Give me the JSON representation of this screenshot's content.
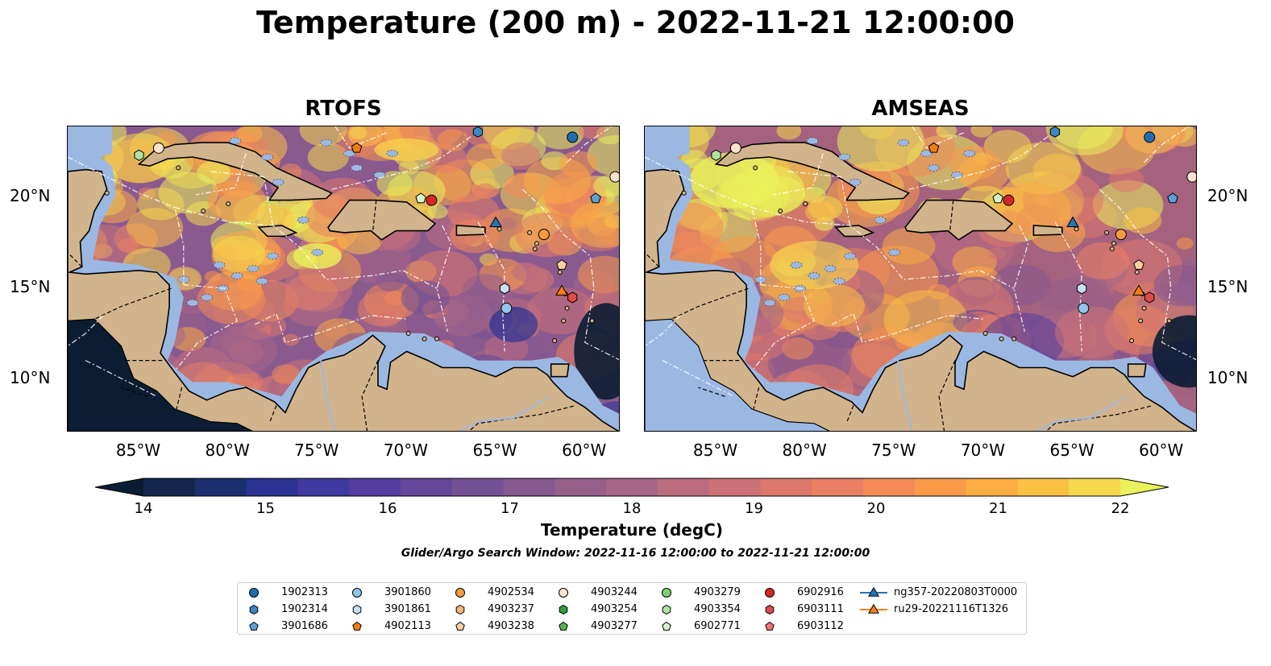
{
  "title": "Temperature (200 m) - 2022-11-21 12:00:00",
  "panels": [
    {
      "title": "RTOFS"
    },
    {
      "title": "AMSEAS"
    }
  ],
  "lat_ticks": [
    "20°N",
    "15°N",
    "10°N"
  ],
  "lon_ticks": [
    "85°W",
    "80°W",
    "75°W",
    "70°W",
    "65°W",
    "60°W"
  ],
  "map_extent": {
    "lon": [
      -89,
      -58
    ],
    "lat": [
      7,
      24
    ]
  },
  "colorbar": {
    "label": "Temperature (degC)",
    "ticks": [
      "14",
      "15",
      "16",
      "17",
      "18",
      "19",
      "20",
      "21",
      "22"
    ],
    "range": [
      14,
      22
    ],
    "step": 0.5,
    "extend": "both",
    "colors": [
      "#0b1d32",
      "#13274d",
      "#1b2f6e",
      "#2b3393",
      "#3f39a0",
      "#533e9f",
      "#654799",
      "#755094",
      "#85588f",
      "#965f8b",
      "#a86686",
      "#bb6c7f",
      "#cc7276",
      "#dd786c",
      "#ea8063",
      "#f48b56",
      "#f99b48",
      "#fbac43",
      "#fbc145",
      "#f6d84c",
      "#eaf15a"
    ]
  },
  "search_window": "Glider/Argo Search Window: 2022-11-16 12:00:00 to 2022-11-21 12:00:00",
  "colors": {
    "land": "#d2b48c",
    "shallow": "#9bb8e3"
  },
  "legend": {
    "columns": [
      [
        {
          "label": "1902313",
          "marker": "circle",
          "color": "#1f6fb0"
        },
        {
          "label": "1902314",
          "marker": "hexagon",
          "color": "#3b86c4"
        },
        {
          "label": "3901686",
          "marker": "pentagon",
          "color": "#5aa1d6"
        }
      ],
      [
        {
          "label": "3901860",
          "marker": "circle",
          "color": "#94c4e8"
        },
        {
          "label": "3901861",
          "marker": "hexagon",
          "color": "#c7e0f4"
        },
        {
          "label": "4902113",
          "marker": "pentagon",
          "color": "#f07d14"
        }
      ],
      [
        {
          "label": "4902534",
          "marker": "circle",
          "color": "#f59b3c"
        },
        {
          "label": "4903237",
          "marker": "hexagon",
          "color": "#f9b875"
        },
        {
          "label": "4903238",
          "marker": "pentagon",
          "color": "#fbcfa0"
        }
      ],
      [
        {
          "label": "4903244",
          "marker": "circle",
          "color": "#fde3cb"
        },
        {
          "label": "4903254",
          "marker": "hexagon",
          "color": "#2e9e3a"
        },
        {
          "label": "4903277",
          "marker": "pentagon",
          "color": "#53b64f"
        }
      ],
      [
        {
          "label": "4903279",
          "marker": "circle",
          "color": "#7fcf72"
        },
        {
          "label": "4903354",
          "marker": "hexagon",
          "color": "#aee3a0"
        },
        {
          "label": "6902771",
          "marker": "pentagon",
          "color": "#d8f3cd"
        }
      ],
      [
        {
          "label": "6902916",
          "marker": "circle",
          "color": "#d62728"
        },
        {
          "label": "6903111",
          "marker": "hexagon",
          "color": "#e24a4a"
        },
        {
          "label": "6903112",
          "marker": "pentagon",
          "color": "#ee7474"
        }
      ],
      [
        {
          "label": "ng357-20220803T0000",
          "marker": "triangle-line",
          "color": "#1f77b4"
        },
        {
          "label": "ru29-20221116T1326",
          "marker": "triangle-line",
          "color": "#ff7f0e"
        }
      ]
    ]
  },
  "markers": [
    {
      "lon": -85.0,
      "lat": 22.4,
      "marker": "hexagon",
      "color": "#aee3a0"
    },
    {
      "lon": -83.9,
      "lat": 22.8,
      "marker": "circle",
      "color": "#fde3cb"
    },
    {
      "lon": -72.8,
      "lat": 22.8,
      "marker": "pentagon",
      "color": "#f07d14"
    },
    {
      "lon": -68.6,
      "lat": 19.9,
      "marker": "circle",
      "color": "#d62728"
    },
    {
      "lon": -69.2,
      "lat": 20.0,
      "marker": "pentagon",
      "color": "#d8f3cd"
    },
    {
      "lon": -66.0,
      "lat": 23.7,
      "marker": "hexagon",
      "color": "#3b86c4"
    },
    {
      "lon": -60.7,
      "lat": 23.4,
      "marker": "circle",
      "color": "#1f6fb0"
    },
    {
      "lon": -58.3,
      "lat": 21.2,
      "marker": "circle",
      "color": "#fde3cb"
    },
    {
      "lon": -59.4,
      "lat": 20.0,
      "marker": "pentagon",
      "color": "#5aa1d6"
    },
    {
      "lon": -62.3,
      "lat": 18.0,
      "marker": "circle",
      "color": "#f59b3c"
    },
    {
      "lon": -61.3,
      "lat": 16.3,
      "marker": "pentagon",
      "color": "#fbcfa0"
    },
    {
      "lon": -64.5,
      "lat": 15.0,
      "marker": "hexagon",
      "color": "#c7e0f4"
    },
    {
      "lon": -64.4,
      "lat": 13.9,
      "marker": "circle",
      "color": "#94c4e8"
    },
    {
      "lon": -60.7,
      "lat": 14.5,
      "marker": "hexagon",
      "color": "#e24a4a"
    },
    {
      "lon": -65.0,
      "lat": 18.7,
      "marker": "triangle",
      "color": "#1f77b4"
    },
    {
      "lon": -61.3,
      "lat": 14.9,
      "marker": "triangle",
      "color": "#ff7f0e"
    }
  ]
}
